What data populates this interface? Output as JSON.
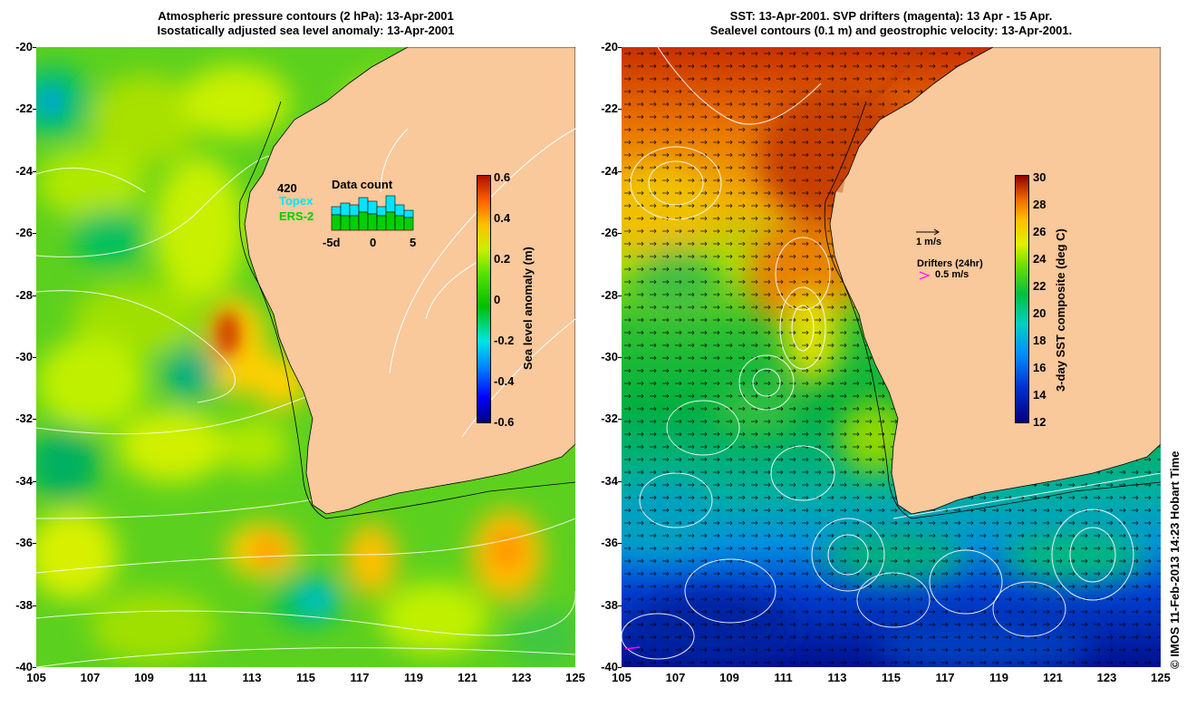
{
  "left_panel": {
    "title_line1": "Atmospheric pressure contours (2 hPa): 13-Apr-2001",
    "title_line2": "Isostatically adjusted sea level anomaly: 13-Apr-2001",
    "colorbar": {
      "title": "Sea level anomaly (m)",
      "ticks": [
        "0.6",
        "0.4",
        "0.2",
        "0",
        "-0.2",
        "-0.4",
        "-0.6"
      ]
    },
    "data_count": {
      "title": "Data count",
      "total": "420",
      "series1": "Topex",
      "series2": "ERS-2",
      "x_ticks": [
        "-5d",
        "0",
        "5"
      ],
      "series1_color": "#00e5ff",
      "series2_color": "#00d000"
    }
  },
  "right_panel": {
    "title_line1": "SST: 13-Apr-2001. SVP drifters (magenta): 13 Apr - 15 Apr.",
    "title_line2": "Sealevel contours (0.1 m) and geostrophic velocity: 13-Apr-2001.",
    "colorbar": {
      "title": "3-day SST composite (deg C)",
      "ticks": [
        "30",
        "28",
        "26",
        "24",
        "22",
        "20",
        "18",
        "16",
        "14",
        "12"
      ]
    },
    "velocity_legend": "1 m/s",
    "drifter_legend_title": "Drifters (24hr)",
    "drifter_legend_value": "0.5 m/s",
    "drifter_color": "#ff00ff"
  },
  "axes": {
    "y_ticks": [
      "-20",
      "-22",
      "-24",
      "-26",
      "-28",
      "-30",
      "-32",
      "-34",
      "-36",
      "-38",
      "-40"
    ],
    "x_ticks": [
      "105",
      "107",
      "109",
      "111",
      "113",
      "115",
      "117",
      "119",
      "121",
      "123",
      "125"
    ]
  },
  "credit": "© IMOS 11-Feb-2013 14:23 Hobart Time",
  "colors": {
    "land": "#f9c89b",
    "sla_ocean": "#5cd01e",
    "sst_warm": "#e07000",
    "sst_cool": "#0040d0"
  }
}
